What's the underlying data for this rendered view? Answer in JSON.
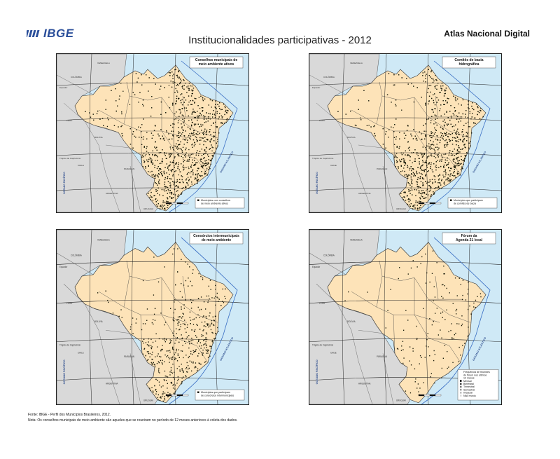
{
  "header": {
    "logo_text": "IBGE",
    "title": "Institucionalidades participativas - 2012",
    "atlas_label": "Atlas Nacional Digital"
  },
  "colors": {
    "brand": "#2a4e9a",
    "land_brazil": "#fde3b8",
    "land_other": "#d9d9d9",
    "ocean": "#cfe9f6",
    "points": "#1a1a0a"
  },
  "maps": [
    {
      "title_lines": [
        "Conselhos municipais de",
        "meio ambiente ativos"
      ],
      "legend_lines": [
        "Municípios com conselhos",
        "de meio ambiente ativos"
      ]
    },
    {
      "title_lines": [
        "Comitês de bacia",
        "hidrográfica"
      ],
      "legend_lines": [
        "Municípios que participam",
        "de comitês de bacia"
      ]
    },
    {
      "title_lines": [
        "Consórcios intermunicipais",
        "de meio ambiente"
      ],
      "legend_lines": [
        "Municípios que participam",
        "de consórcios intermunicipais"
      ]
    },
    {
      "title_lines": [
        "Fórum da",
        "Agenda 21 local"
      ],
      "legend_lines": [
        "Frequência de reuniões",
        "do fórum nos últimos",
        "12 meses",
        "Mensal",
        "Bimestral",
        "Trimestral",
        "Semestral",
        "Irregular",
        "Não reuniu"
      ]
    }
  ],
  "map_labels": {
    "ocean_atlantic": "OCEANO ATLÂNTICO",
    "ocean_pacific": "OCEANO PACÍFICO",
    "bolivia": "BOLÍVIA",
    "paraguai": "PARAGUAI",
    "argentina": "ARGENTINA",
    "peru": "PERU",
    "colombia": "COLÔMBIA",
    "venezuela": "VENEZUELA",
    "chile": "CHILE",
    "uruguai": "URUGUAI",
    "equador": "Equador",
    "tropico": "Trópico de Capricórnio"
  },
  "footer": {
    "source": "Fonte: IBGE - Perfil dos Municípios Brasileiros, 2012.",
    "note": "Nota: Os conselhos municipais de meio ambiente são aqueles que se reuniram no período de 12 meses anteriores à coleta dos dados."
  }
}
